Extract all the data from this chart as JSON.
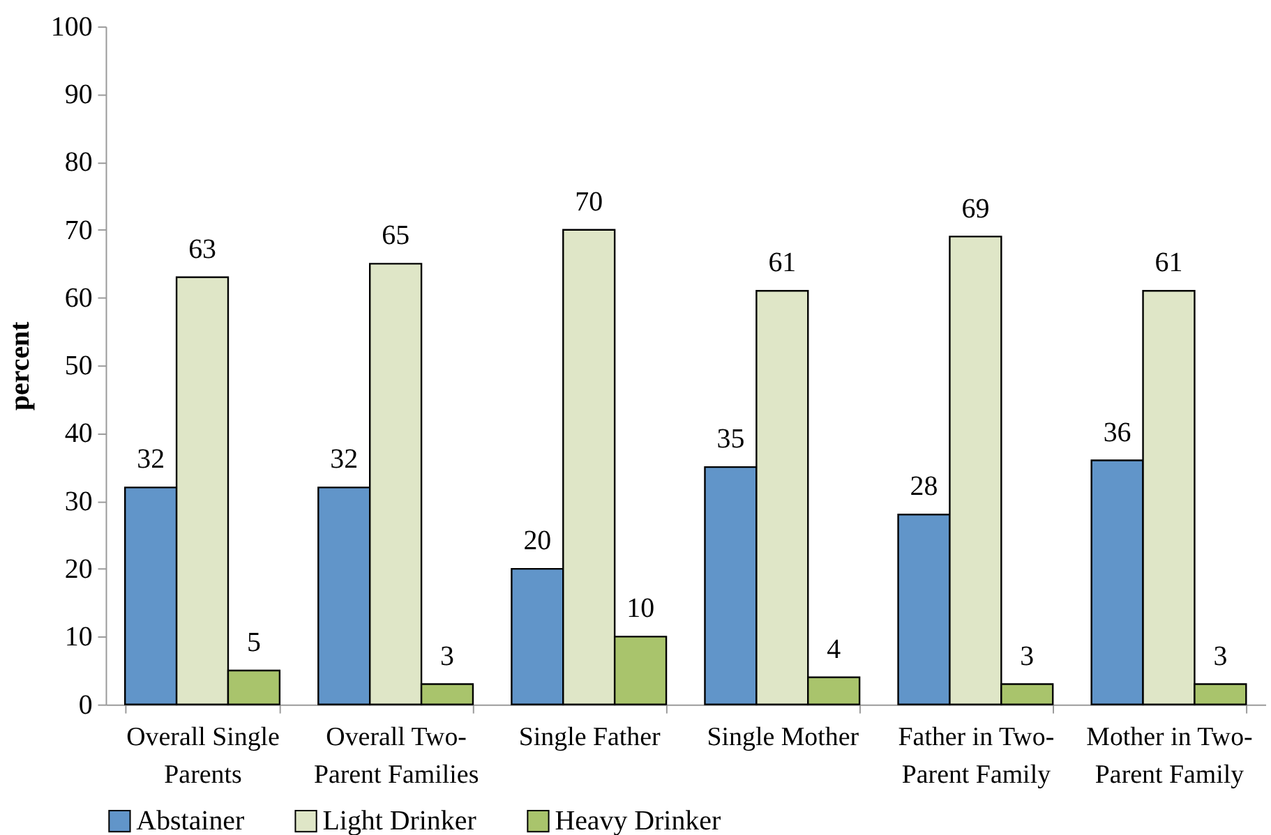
{
  "chart_data": {
    "type": "bar",
    "ylabel": "percent",
    "categories": [
      "Overall Single Parents",
      "Overall Two-Parent Families",
      "Single Father",
      "Single Mother",
      "Father in Two-Parent Family",
      "Mother in Two-Parent Family"
    ],
    "series": [
      {
        "name": "Abstainer",
        "color": "#6195c9",
        "values": [
          32,
          32,
          20,
          35,
          28,
          36
        ]
      },
      {
        "name": "Light Drinker",
        "color": "#dfe6c7",
        "values": [
          63,
          65,
          70,
          61,
          69,
          61
        ]
      },
      {
        "name": "Heavy Drinker",
        "color": "#a9c46c",
        "values": [
          5,
          3,
          10,
          4,
          3,
          3
        ]
      }
    ],
    "ylim": [
      0,
      100
    ],
    "yticks": [
      0,
      10,
      20,
      30,
      40,
      50,
      60,
      70,
      80,
      90,
      100
    ],
    "grid": false,
    "legend": "bottom",
    "data_labels": true
  }
}
